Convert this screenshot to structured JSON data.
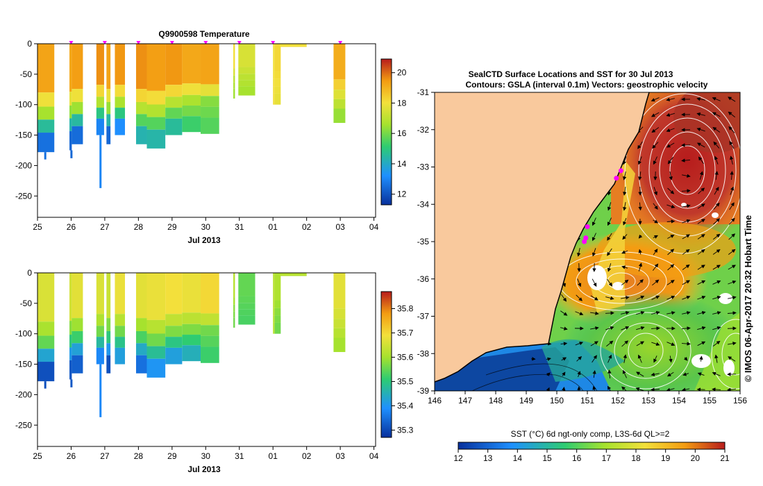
{
  "chart_data": [
    {
      "id": "temperature",
      "type": "heatmap",
      "title": "Q9900598  Temperature",
      "xlabel": "Jul 2013",
      "x_tick_labels": [
        "25",
        "26",
        "27",
        "28",
        "29",
        "30",
        "31",
        "01",
        "02",
        "03",
        "04"
      ],
      "x_range_days": [
        25,
        35.05
      ],
      "y_ticks": [
        0,
        -50,
        -100,
        -150,
        -200,
        -250
      ],
      "ylim": [
        -285,
        0
      ],
      "colorbar": {
        "ticks": [
          12,
          14,
          16,
          18,
          20
        ],
        "range": [
          11.3,
          20.9
        ]
      },
      "profiles": [
        {
          "t": 25.0,
          "w": 0.5,
          "depth": 178,
          "surface": 19.3,
          "mid": 16.6,
          "deep": 12.6,
          "tail": 190
        },
        {
          "t": 25.95,
          "w": 0.07,
          "depth": 175,
          "surface": 19.2,
          "mid": 16.3,
          "deep": 12.4,
          "tail": 188
        },
        {
          "t": 26.02,
          "w": 0.33,
          "depth": 165,
          "surface": 19.4,
          "mid": 16.5,
          "deep": 12.5
        },
        {
          "t": 26.75,
          "w": 0.23,
          "depth": 150,
          "surface": 19.6,
          "mid": 16.8,
          "deep": 13.0,
          "tail": 237
        },
        {
          "t": 27.05,
          "w": 0.12,
          "depth": 165,
          "surface": 19.3,
          "mid": 16.4,
          "deep": 12.4
        },
        {
          "t": 27.3,
          "w": 0.3,
          "depth": 150,
          "surface": 19.5,
          "mid": 16.7,
          "deep": 13.2
        },
        {
          "t": 27.93,
          "w": 0.32,
          "depth": 165,
          "surface": 19.6,
          "mid": 16.9,
          "deep": 14.3
        },
        {
          "t": 28.25,
          "w": 0.55,
          "depth": 172,
          "surface": 19.4,
          "mid": 16.8,
          "deep": 14.4
        },
        {
          "t": 28.8,
          "w": 0.5,
          "depth": 150,
          "surface": 19.5,
          "mid": 16.9,
          "deep": 14.6
        },
        {
          "t": 29.3,
          "w": 0.55,
          "depth": 145,
          "surface": 19.2,
          "mid": 16.7,
          "deep": 15.3
        },
        {
          "t": 29.85,
          "w": 0.55,
          "depth": 148,
          "surface": 19.3,
          "mid": 16.2,
          "deep": 15.6
        },
        {
          "t": 30.82,
          "w": 0.05,
          "depth": 90,
          "surface": 18.0,
          "mid": 17.0,
          "deep": 16.5
        },
        {
          "t": 30.97,
          "w": 0.5,
          "depth": 85,
          "surface": 17.5,
          "mid": 17.0,
          "deep": 16.6
        },
        {
          "t": 32.0,
          "w": 0.05,
          "depth": 100,
          "surface": 18.0,
          "mid": 18.0,
          "deep": 18.0
        },
        {
          "t": 32.05,
          "w": 0.18,
          "depth": 100,
          "surface": 18.2,
          "mid": 18.0,
          "deep": 17.8
        },
        {
          "t": 32.2,
          "w": 0.8,
          "depth": 5,
          "surface": 18.0,
          "mid": 18.0,
          "deep": 18.0
        },
        {
          "t": 33.8,
          "w": 0.35,
          "depth": 130,
          "surface": 19.1,
          "mid": 17.6,
          "deep": 16.4
        }
      ],
      "markers_days": [
        26,
        27,
        28,
        29,
        30,
        31,
        32,
        34
      ]
    },
    {
      "id": "salinity",
      "type": "heatmap",
      "title": "",
      "xlabel": "Jul 2013",
      "x_tick_labels": [
        "25",
        "26",
        "27",
        "28",
        "29",
        "30",
        "31",
        "01",
        "02",
        "03",
        "04"
      ],
      "x_range_days": [
        25,
        35.05
      ],
      "y_ticks": [
        0,
        -50,
        -100,
        -150,
        -200,
        -250
      ],
      "ylim": [
        -285,
        0
      ],
      "colorbar": {
        "ticks": [
          35.3,
          35.4,
          35.5,
          35.6,
          35.7,
          35.8
        ],
        "range": [
          35.27,
          35.87
        ]
      },
      "profiles": [
        {
          "t": 25.0,
          "w": 0.5,
          "depth": 178,
          "surface": 35.66,
          "mid": 35.55,
          "deep": 35.31,
          "tail": 190
        },
        {
          "t": 25.95,
          "w": 0.07,
          "depth": 175,
          "surface": 35.65,
          "mid": 35.5,
          "deep": 35.32,
          "tail": 188
        },
        {
          "t": 26.02,
          "w": 0.33,
          "depth": 165,
          "surface": 35.67,
          "mid": 35.52,
          "deep": 35.33
        },
        {
          "t": 26.75,
          "w": 0.23,
          "depth": 150,
          "surface": 35.66,
          "mid": 35.56,
          "deep": 35.38,
          "tail": 237
        },
        {
          "t": 27.05,
          "w": 0.12,
          "depth": 165,
          "surface": 35.64,
          "mid": 35.5,
          "deep": 35.31
        },
        {
          "t": 27.3,
          "w": 0.3,
          "depth": 150,
          "surface": 35.68,
          "mid": 35.56,
          "deep": 35.42
        },
        {
          "t": 27.93,
          "w": 0.32,
          "depth": 165,
          "surface": 35.67,
          "mid": 35.53,
          "deep": 35.35
        },
        {
          "t": 28.25,
          "w": 0.55,
          "depth": 172,
          "surface": 35.68,
          "mid": 35.56,
          "deep": 35.4
        },
        {
          "t": 28.8,
          "w": 0.5,
          "depth": 150,
          "surface": 35.69,
          "mid": 35.57,
          "deep": 35.42
        },
        {
          "t": 29.3,
          "w": 0.55,
          "depth": 145,
          "surface": 35.68,
          "mid": 35.57,
          "deep": 35.45
        },
        {
          "t": 29.85,
          "w": 0.55,
          "depth": 148,
          "surface": 35.7,
          "mid": 35.56,
          "deep": 35.52
        },
        {
          "t": 30.82,
          "w": 0.05,
          "depth": 90,
          "surface": 35.62,
          "mid": 35.58,
          "deep": 35.56
        },
        {
          "t": 30.97,
          "w": 0.5,
          "depth": 85,
          "surface": 35.55,
          "mid": 35.54,
          "deep": 35.53
        },
        {
          "t": 32.0,
          "w": 0.05,
          "depth": 100,
          "surface": 35.62,
          "mid": 35.62,
          "deep": 35.62
        },
        {
          "t": 32.05,
          "w": 0.18,
          "depth": 100,
          "surface": 35.61,
          "mid": 35.58,
          "deep": 35.56
        },
        {
          "t": 32.2,
          "w": 0.8,
          "depth": 5,
          "surface": 35.62,
          "mid": 35.62,
          "deep": 35.62
        },
        {
          "t": 33.8,
          "w": 0.35,
          "depth": 130,
          "surface": 35.67,
          "mid": 35.64,
          "deep": 35.6
        }
      ]
    },
    {
      "id": "sst-map",
      "type": "heatmap",
      "title_line1": "SealCTD Surface Locations and SST for 30 Jul 2013",
      "title_line2": "Contours: GSLA (interval 0.1m) Vectors: geostrophic velocity",
      "xlim": [
        146,
        156
      ],
      "ylim": [
        -39,
        -31
      ],
      "x_tick_labels": [
        "146",
        "147",
        "148",
        "149",
        "150",
        "151",
        "152",
        "153",
        "154",
        "155",
        "156"
      ],
      "y_tick_labels": [
        "-31",
        "-32",
        "-33",
        "-34",
        "-35",
        "-36",
        "-37",
        "-38",
        "-39"
      ],
      "colorbar": {
        "label": "SST (°C) 6d ngt-only comp, L3S-6d QL>=2",
        "ticks": [
          "12",
          "13",
          "14",
          "15",
          "16",
          "17",
          "18",
          "19",
          "20",
          "21"
        ],
        "range": [
          12,
          21
        ]
      },
      "side_label": "© IMOS 06-Apr-2017 20:32 Hobart Time",
      "seal_locations": [
        [
          151.95,
          -33.3
        ],
        [
          152.1,
          -33.1
        ],
        [
          151.0,
          -34.6
        ],
        [
          150.95,
          -34.9
        ],
        [
          150.9,
          -35.0
        ]
      ]
    }
  ],
  "colors": {
    "land": "#f9c99d",
    "seal_marker": "#ff00ff",
    "contour": "#ffffff",
    "vector": "#000000"
  }
}
